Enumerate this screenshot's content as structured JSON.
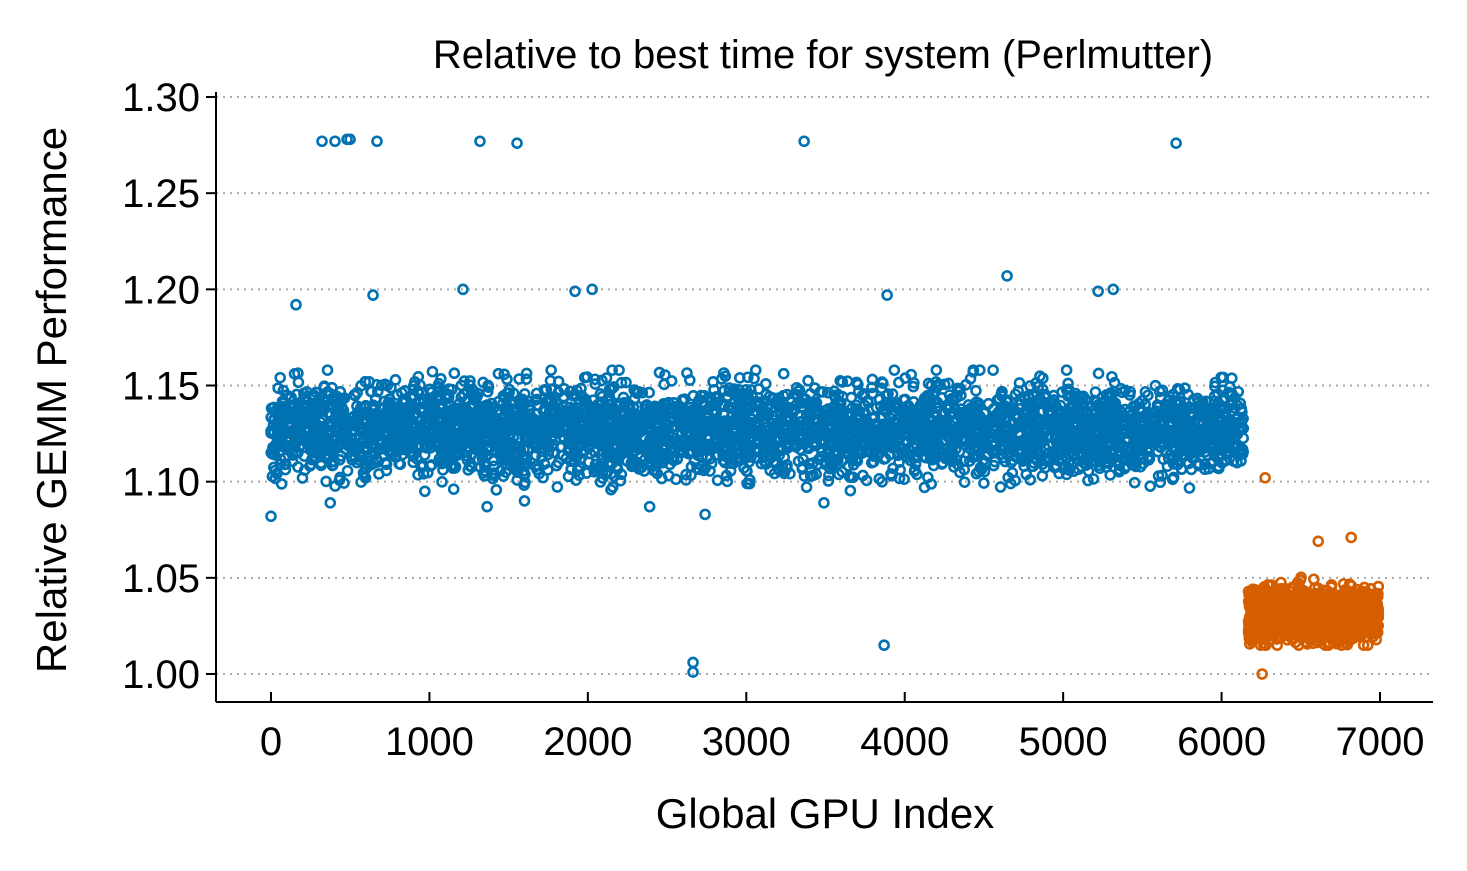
{
  "chart_data": {
    "type": "scatter",
    "title": "Relative to best time for system (Perlmutter)",
    "xlabel": "Global GPU Index",
    "ylabel": "Relative GEMM Performance",
    "xlim": [
      -347,
      7336
    ],
    "ylim": [
      0.985,
      1.3
    ],
    "xticks": [
      0,
      1000,
      2000,
      3000,
      4000,
      5000,
      6000,
      7000
    ],
    "xtick_labels": [
      "0",
      "1000",
      "2000",
      "3000",
      "4000",
      "5000",
      "6000",
      "7000"
    ],
    "yticks": [
      1.0,
      1.05,
      1.1,
      1.15,
      1.2,
      1.25,
      1.3
    ],
    "ytick_labels": [
      "1.00",
      "1.05",
      "1.10",
      "1.15",
      "1.20",
      "1.25",
      "1.30"
    ],
    "grid": "horizontal dotted",
    "marker": "open circle",
    "series": [
      {
        "color": "#0072B2",
        "bulk": {
          "x_range": [
            0,
            6140
          ],
          "y_center": 1.127,
          "y_range": [
            1.095,
            1.158
          ]
        },
        "outliers": [
          [
            322,
            1.277
          ],
          [
            404,
            1.277
          ],
          [
            480,
            1.278
          ],
          [
            499,
            1.278
          ],
          [
            669,
            1.277
          ],
          [
            1319,
            1.277
          ],
          [
            1553,
            1.276
          ],
          [
            3365,
            1.277
          ],
          [
            5713,
            1.276
          ],
          [
            158,
            1.192
          ],
          [
            644,
            1.197
          ],
          [
            1212,
            1.2
          ],
          [
            1919,
            1.199
          ],
          [
            2027,
            1.2
          ],
          [
            3889,
            1.197
          ],
          [
            4646,
            1.207
          ],
          [
            5221,
            1.199
          ],
          [
            5316,
            1.2
          ],
          [
            0,
            1.082
          ],
          [
            2740,
            1.083
          ],
          [
            2664,
            1.001
          ],
          [
            2664,
            1.006
          ],
          [
            3870,
            1.015
          ],
          [
            374,
            1.089
          ],
          [
            1364,
            1.087
          ],
          [
            1600,
            1.09
          ],
          [
            2390,
            1.087
          ],
          [
            3490,
            1.089
          ]
        ]
      },
      {
        "color": "#D55E00",
        "bulk": {
          "x_range": [
            6170,
            6990
          ],
          "y_center": 1.031,
          "y_range": [
            1.015,
            1.051
          ]
        },
        "outliers": [
          [
            6275,
            1.102
          ],
          [
            6610,
            1.069
          ],
          [
            6818,
            1.071
          ],
          [
            6256,
            1.0
          ]
        ]
      }
    ]
  }
}
